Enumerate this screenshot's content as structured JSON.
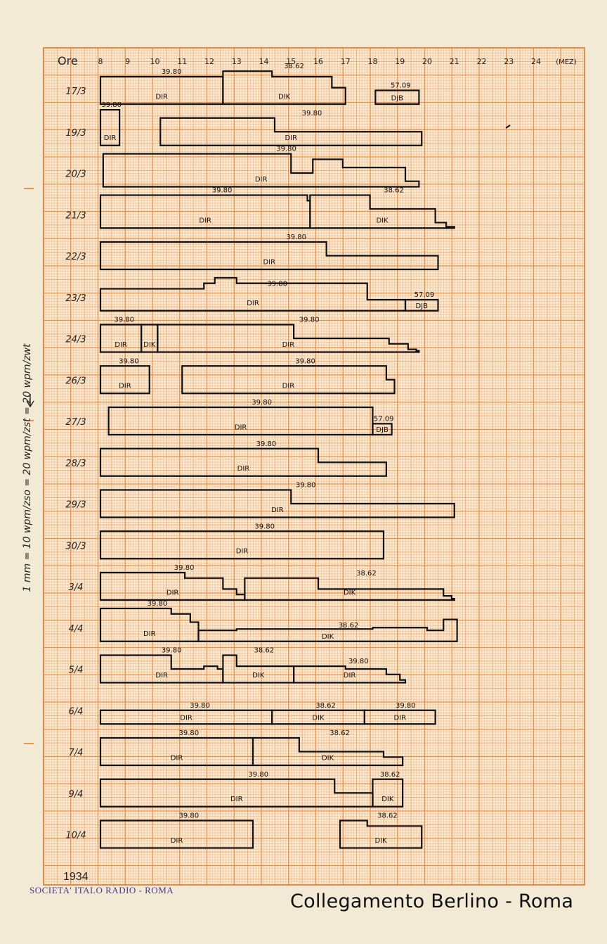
{
  "header": {
    "hours_label": "Ore",
    "end_label": "(MEZ)"
  },
  "hours": [
    "8",
    "9",
    "10",
    "11",
    "12",
    "13",
    "14",
    "15",
    "16",
    "17",
    "18",
    "19",
    "20",
    "21",
    "22",
    "23",
    "24"
  ],
  "side_note": "1 mm = 10 wpm/zso = 20 wpm/zst = 20 wpm/zwt",
  "year": "1934",
  "stamp": "SOCIETA' ITALO RADIO - ROMA",
  "title": "Collegamento Berlino - Roma",
  "days": [
    {
      "date": "17/3",
      "segments": [
        {
          "station": "DIR",
          "freq": "39.80",
          "start": 8.0,
          "end": 12.5,
          "level": [
            [
              8.0,
              10
            ],
            [
              12.5,
              10
            ]
          ]
        },
        {
          "station": "DIK",
          "freq": "38.62",
          "start": 12.5,
          "end": 17.0,
          "level": [
            [
              12.5,
              12
            ],
            [
              14.3,
              10
            ],
            [
              16.5,
              6
            ],
            [
              17.0,
              4
            ]
          ]
        },
        {
          "station": "DJB",
          "freq": "57.09",
          "start": 18.1,
          "end": 19.7,
          "level": [
            [
              18.1,
              5
            ],
            [
              19.7,
              5
            ]
          ]
        }
      ]
    },
    {
      "date": "19/3",
      "segments": [
        {
          "station": "DIR",
          "freq": "39.80",
          "start": 8.0,
          "end": 8.7,
          "level": [
            [
              8.0,
              13
            ],
            [
              8.7,
              13
            ]
          ]
        },
        {
          "station": "DIR",
          "freq": "39.80",
          "start": 10.2,
          "end": 19.8,
          "level": [
            [
              10.2,
              10
            ],
            [
              14.4,
              5
            ],
            [
              19.8,
              5
            ]
          ]
        }
      ]
    },
    {
      "date": "20/3",
      "segments": [
        {
          "station": "DIR",
          "freq": "39.80",
          "start": 8.1,
          "end": 19.7,
          "level": [
            [
              8.1,
              12
            ],
            [
              15.0,
              5
            ],
            [
              15.8,
              10
            ],
            [
              16.9,
              7
            ],
            [
              19.2,
              2
            ]
          ]
        }
      ]
    },
    {
      "date": "21/3",
      "segments": [
        {
          "station": "DIR",
          "freq": "39.80",
          "start": 8.0,
          "end": 15.7,
          "level": [
            [
              8.0,
              12
            ],
            [
              15.6,
              10
            ]
          ]
        },
        {
          "station": "DIK",
          "freq": "38.62",
          "start": 15.7,
          "end": 21.0,
          "level": [
            [
              15.7,
              12
            ],
            [
              17.9,
              7
            ],
            [
              20.3,
              2
            ],
            [
              20.7,
              0.5
            ]
          ]
        }
      ]
    },
    {
      "date": "22/3",
      "segments": [
        {
          "station": "DIR",
          "freq": "39.80",
          "start": 8.0,
          "end": 20.4,
          "level": [
            [
              8.0,
              10
            ],
            [
              16.3,
              5
            ],
            [
              20.4,
              5
            ]
          ]
        }
      ]
    },
    {
      "date": "23/3",
      "segments": [
        {
          "station": "DIR",
          "freq": "39.80",
          "start": 8.0,
          "end": 19.2,
          "level": [
            [
              8.0,
              8
            ],
            [
              11.8,
              10
            ],
            [
              12.2,
              12
            ],
            [
              13.0,
              10
            ],
            [
              17.8,
              4
            ],
            [
              19.2,
              4
            ]
          ]
        },
        {
          "station": "DJB",
          "freq": "57.09",
          "start": 19.2,
          "end": 20.4,
          "level": [
            [
              19.2,
              4
            ],
            [
              20.4,
              4
            ]
          ]
        }
      ]
    },
    {
      "date": "24/3",
      "segments": [
        {
          "station": "DIR",
          "freq": "39.80",
          "start": 8.0,
          "end": 9.5,
          "level": [
            [
              8.0,
              10
            ],
            [
              9.5,
              10
            ]
          ]
        },
        {
          "station": "DIK",
          "freq": "",
          "start": 9.5,
          "end": 10.1,
          "level": [
            [
              9.5,
              10
            ],
            [
              10.1,
              10
            ]
          ]
        },
        {
          "station": "DIR",
          "freq": "39.80",
          "start": 10.1,
          "end": 19.7,
          "level": [
            [
              10.1,
              10
            ],
            [
              15.1,
              5
            ],
            [
              18.6,
              3
            ],
            [
              19.3,
              1
            ],
            [
              19.6,
              0.5
            ]
          ]
        }
      ]
    },
    {
      "date": "26/3",
      "segments": [
        {
          "station": "DIR",
          "freq": "39.80",
          "start": 8.0,
          "end": 9.8,
          "level": [
            [
              8.0,
              10
            ],
            [
              9.8,
              10
            ]
          ]
        },
        {
          "station": "DIR",
          "freq": "39.80",
          "start": 11.0,
          "end": 18.8,
          "level": [
            [
              11.0,
              10
            ],
            [
              18.5,
              5
            ],
            [
              18.8,
              5
            ]
          ]
        }
      ]
    },
    {
      "date": "27/3",
      "segments": [
        {
          "station": "DIR",
          "freq": "39.80",
          "start": 8.3,
          "end": 18.0,
          "level": [
            [
              8.3,
              10
            ],
            [
              18.0,
              10
            ]
          ]
        },
        {
          "station": "DJB",
          "freq": "57.09",
          "start": 18.0,
          "end": 18.7,
          "level": [
            [
              18.0,
              4
            ],
            [
              18.7,
              4
            ]
          ]
        }
      ]
    },
    {
      "date": "28/3",
      "segments": [
        {
          "station": "DIR",
          "freq": "39.80",
          "start": 8.0,
          "end": 18.5,
          "level": [
            [
              8.0,
              10
            ],
            [
              16.0,
              5
            ],
            [
              18.5,
              5
            ]
          ]
        }
      ]
    },
    {
      "date": "29/3",
      "segments": [
        {
          "station": "DIR",
          "freq": "39.80",
          "start": 8.0,
          "end": 21.0,
          "level": [
            [
              8.0,
              10
            ],
            [
              15.0,
              5
            ],
            [
              21.0,
              5
            ]
          ]
        }
      ]
    },
    {
      "date": "30/3",
      "segments": [
        {
          "station": "DIR",
          "freq": "39.80",
          "start": 8.0,
          "end": 18.4,
          "level": [
            [
              8.0,
              10
            ],
            [
              18.4,
              10
            ]
          ]
        }
      ]
    },
    {
      "date": "3/4",
      "segments": [
        {
          "station": "DIR",
          "freq": "39.80",
          "start": 8.0,
          "end": 13.3,
          "level": [
            [
              8.0,
              10
            ],
            [
              11.1,
              8
            ],
            [
              12.5,
              4
            ],
            [
              13.0,
              2
            ]
          ]
        },
        {
          "station": "DIK",
          "freq": "38.62",
          "start": 13.3,
          "end": 21.0,
          "level": [
            [
              13.3,
              8
            ],
            [
              16.0,
              4
            ],
            [
              20.6,
              1.5
            ],
            [
              20.9,
              0.5
            ]
          ]
        }
      ]
    },
    {
      "date": "4/4",
      "segments": [
        {
          "station": "DIR",
          "freq": "39.80",
          "start": 8.0,
          "end": 11.6,
          "level": [
            [
              8.0,
              12
            ],
            [
              10.6,
              10
            ],
            [
              11.3,
              7
            ],
            [
              11.6,
              4
            ]
          ]
        },
        {
          "station": "DIK",
          "freq": "38.62",
          "start": 11.6,
          "end": 21.1,
          "level": [
            [
              11.6,
              4
            ],
            [
              13.0,
              4.5
            ],
            [
              18.0,
              5
            ],
            [
              20.0,
              4
            ],
            [
              20.6,
              8
            ],
            [
              21.1,
              8
            ]
          ]
        }
      ]
    },
    {
      "date": "5/4",
      "segments": [
        {
          "station": "DIR",
          "freq": "39.80",
          "start": 8.0,
          "end": 12.5,
          "level": [
            [
              8.0,
              10
            ],
            [
              10.6,
              5
            ],
            [
              11.8,
              6
            ],
            [
              12.3,
              5
            ]
          ]
        },
        {
          "station": "DIK",
          "freq": "38.62",
          "start": 12.5,
          "end": 15.1,
          "level": [
            [
              12.5,
              10
            ],
            [
              13.0,
              6
            ]
          ]
        },
        {
          "station": "DIR",
          "freq": "39.80",
          "start": 15.1,
          "end": 19.2,
          "level": [
            [
              15.1,
              6
            ],
            [
              17.0,
              5
            ],
            [
              18.5,
              3
            ],
            [
              19.0,
              1
            ]
          ]
        }
      ]
    },
    {
      "date": "6/4",
      "segments": [
        {
          "station": "DIR",
          "freq": "39.80",
          "start": 8.0,
          "end": 14.3,
          "level": [
            [
              8.0,
              5
            ],
            [
              14.3,
              5
            ]
          ]
        },
        {
          "station": "DIK",
          "freq": "38.62",
          "start": 14.3,
          "end": 17.7,
          "level": [
            [
              14.3,
              5
            ],
            [
              17.7,
              5
            ]
          ]
        },
        {
          "station": "DIR",
          "freq": "39.80",
          "start": 17.7,
          "end": 20.3,
          "level": [
            [
              17.7,
              5
            ],
            [
              20.3,
              5
            ]
          ]
        }
      ]
    },
    {
      "date": "7/4",
      "segments": [
        {
          "station": "DIR",
          "freq": "39.80",
          "start": 8.0,
          "end": 13.6,
          "level": [
            [
              8.0,
              10
            ],
            [
              13.6,
              10
            ]
          ]
        },
        {
          "station": "DIK",
          "freq": "38.62",
          "start": 13.6,
          "end": 19.1,
          "level": [
            [
              13.6,
              10
            ],
            [
              15.3,
              5
            ],
            [
              18.4,
              3
            ],
            [
              19.1,
              3
            ]
          ]
        }
      ]
    },
    {
      "date": "9/4",
      "segments": [
        {
          "station": "DIR",
          "freq": "39.80",
          "start": 8.0,
          "end": 18.0,
          "level": [
            [
              8.0,
              10
            ],
            [
              16.6,
              5
            ],
            [
              18.0,
              5
            ]
          ]
        },
        {
          "station": "DIK",
          "freq": "38.62",
          "start": 18.0,
          "end": 19.1,
          "level": [
            [
              18.0,
              10
            ],
            [
              19.1,
              10
            ]
          ]
        }
      ]
    },
    {
      "date": "10/4",
      "segments": [
        {
          "station": "DIR",
          "freq": "39.80",
          "start": 8.0,
          "end": 13.6,
          "level": [
            [
              8.0,
              10
            ],
            [
              13.6,
              10
            ]
          ]
        },
        {
          "station": "DIK",
          "freq": "38.62",
          "start": 16.8,
          "end": 19.8,
          "level": [
            [
              16.8,
              10
            ],
            [
              17.8,
              8
            ],
            [
              19.8,
              8
            ]
          ]
        }
      ]
    }
  ]
}
